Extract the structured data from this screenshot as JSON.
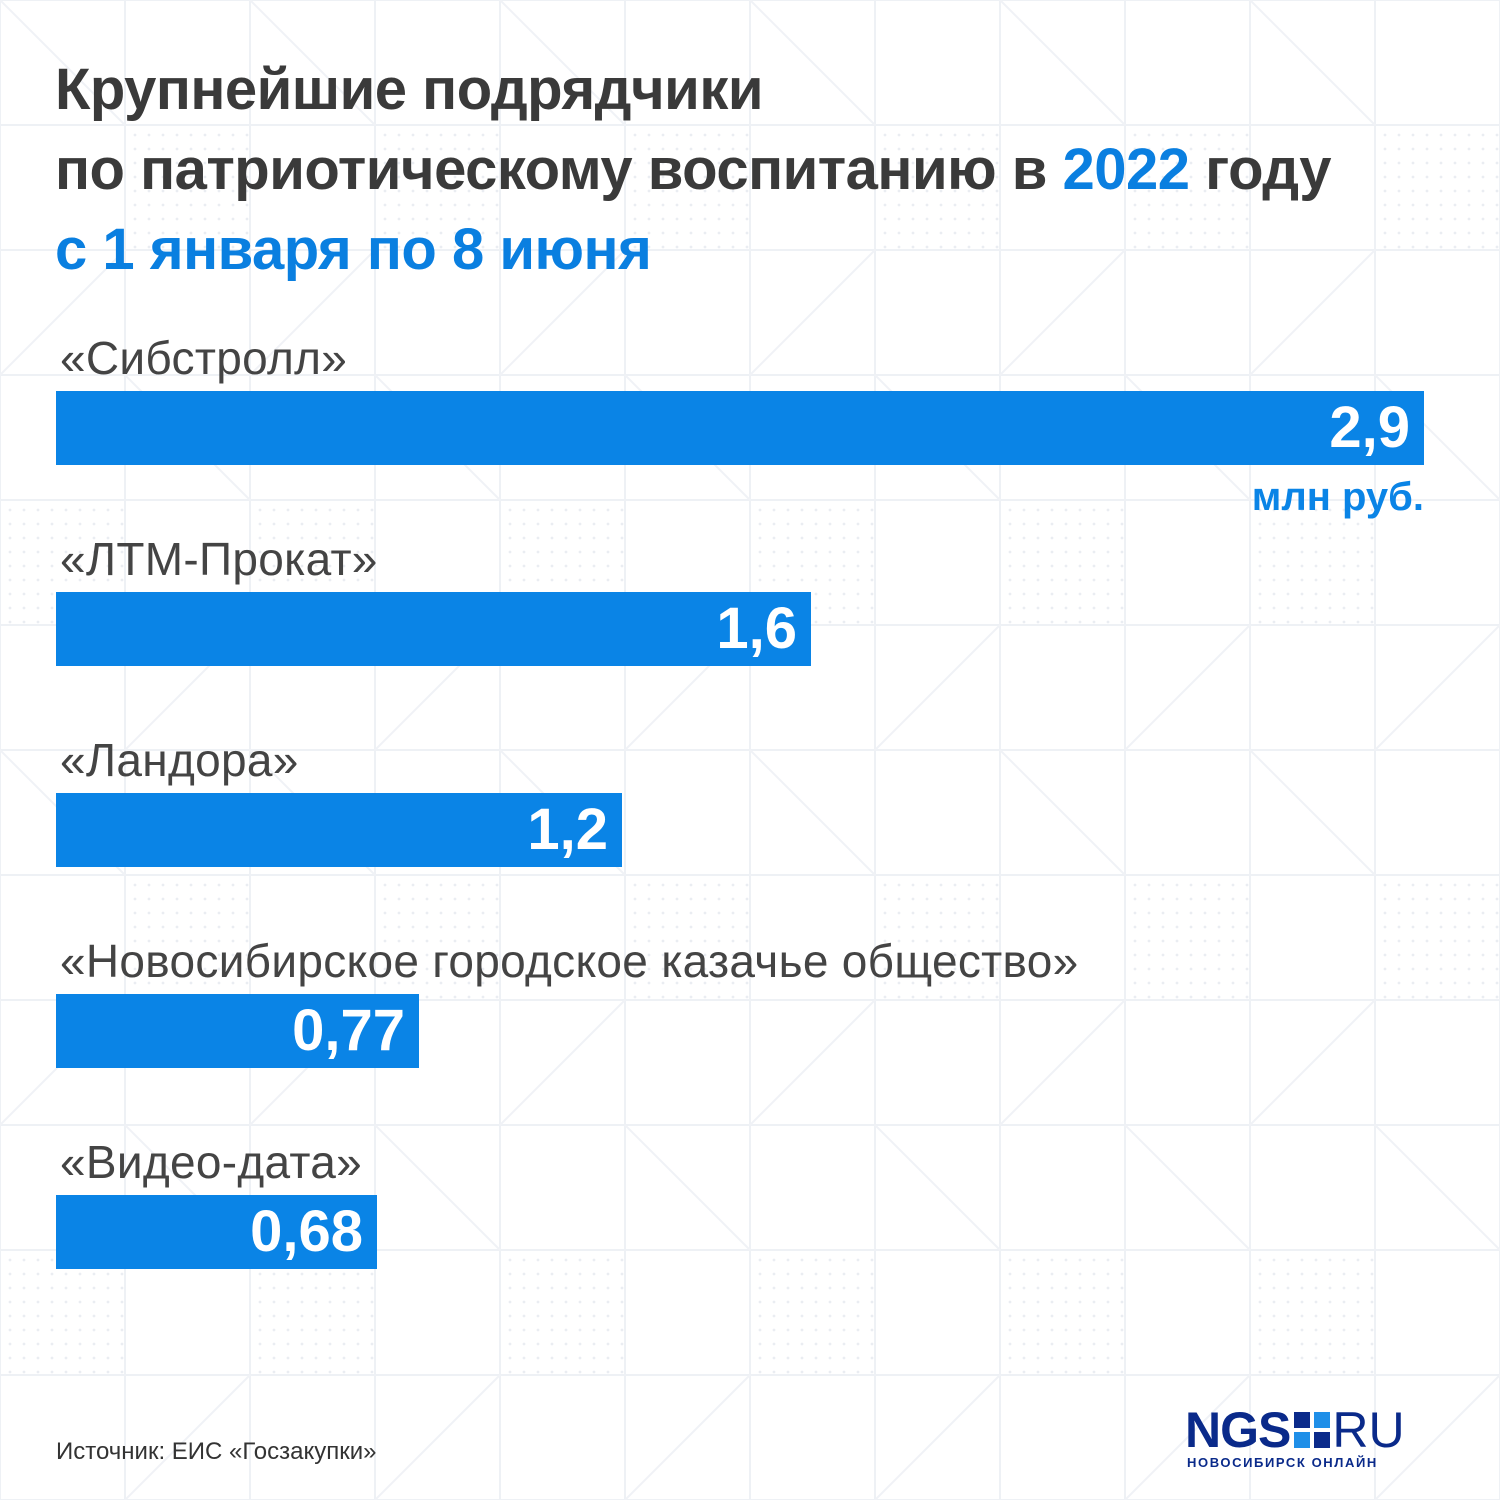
{
  "colors": {
    "title": "#3a3a3a",
    "accent": "#0a7fe0",
    "bar": "#0a84e6",
    "bar_text": "#ffffff",
    "label": "#444444",
    "logo": "#0a2a8a"
  },
  "title": {
    "line1": "Крупнейшие подрядчики",
    "line2_before": "по патриотическому воспитанию в ",
    "line2_year": "2022",
    "line2_after": " году",
    "line3": "с 1 января по 8 июня"
  },
  "chart_data": {
    "type": "bar",
    "orientation": "horizontal",
    "categories": [
      "«Сибстролл»",
      "«ЛТМ-Прокат»",
      "«Ландора»",
      "«Новосибирское городское казачье общество»",
      "«Видео-дата»"
    ],
    "values": [
      2.9,
      1.6,
      1.2,
      0.77,
      0.68
    ],
    "value_labels": [
      "2,9",
      "1,6",
      "1,2",
      "0,77",
      "0,68"
    ],
    "unit_label": "млн руб.",
    "xlim": [
      0,
      2.9
    ],
    "grid": false,
    "legend": "none"
  },
  "footer": {
    "source": "Источник: ЕИС «Госзакупки»"
  },
  "logo": {
    "ngs": "NGS",
    "ru": "RU",
    "subtitle": "НОВОСИБИРСК ОНЛАЙН"
  },
  "icons": {
    "logo_square": "four-square-logo-icon"
  }
}
